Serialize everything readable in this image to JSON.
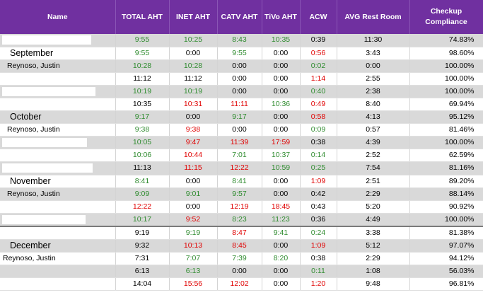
{
  "table": {
    "headers": [
      "Name",
      "TOTAL AHT",
      "INET AHT",
      "CATV AHT",
      "TiVo AHT",
      "ACW",
      "AVG Rest Room",
      "Checkup Compliance"
    ],
    "rows": [
      {
        "name": "",
        "kind": "redacted",
        "shade": true,
        "sep": false,
        "cells": [
          [
            "9:55",
            "g"
          ],
          [
            "10:25",
            "g"
          ],
          [
            "8:43",
            "g"
          ],
          [
            "10:35",
            "g"
          ],
          [
            "0:39",
            "k"
          ],
          [
            "11:30",
            "k"
          ],
          [
            "74.83%",
            "k"
          ]
        ]
      },
      {
        "name": "September",
        "kind": "month",
        "shade": false,
        "sep": false,
        "cells": [
          [
            "9:55",
            "g"
          ],
          [
            "0:00",
            "k"
          ],
          [
            "9:55",
            "g"
          ],
          [
            "0:00",
            "k"
          ],
          [
            "0:56",
            "r"
          ],
          [
            "3:43",
            "k"
          ],
          [
            "98.60%",
            "k"
          ]
        ]
      },
      {
        "name": "Reynoso, Justin",
        "kind": "person",
        "shade": true,
        "sep": false,
        "cells": [
          [
            "10:28",
            "g"
          ],
          [
            "10:28",
            "g"
          ],
          [
            "0:00",
            "k"
          ],
          [
            "0:00",
            "k"
          ],
          [
            "0:02",
            "g"
          ],
          [
            "0:00",
            "k"
          ],
          [
            "100.00%",
            "k"
          ]
        ]
      },
      {
        "name": "",
        "kind": "blank",
        "shade": false,
        "sep": false,
        "cells": [
          [
            "11:12",
            "k"
          ],
          [
            "11:12",
            "k"
          ],
          [
            "0:00",
            "k"
          ],
          [
            "0:00",
            "k"
          ],
          [
            "1:14",
            "r"
          ],
          [
            "2:55",
            "k"
          ],
          [
            "100.00%",
            "k"
          ]
        ]
      },
      {
        "name": "",
        "kind": "redacted",
        "shade": true,
        "sep": false,
        "cells": [
          [
            "10:19",
            "g"
          ],
          [
            "10:19",
            "g"
          ],
          [
            "0:00",
            "k"
          ],
          [
            "0:00",
            "k"
          ],
          [
            "0:40",
            "g"
          ],
          [
            "2:38",
            "k"
          ],
          [
            "100.00%",
            "k"
          ]
        ]
      },
      {
        "name": "",
        "kind": "blank",
        "shade": false,
        "sep": false,
        "cells": [
          [
            "10:35",
            "k"
          ],
          [
            "10:31",
            "r"
          ],
          [
            "11:11",
            "r"
          ],
          [
            "10:36",
            "g"
          ],
          [
            "0:49",
            "r"
          ],
          [
            "8:40",
            "k"
          ],
          [
            "69.94%",
            "k"
          ]
        ]
      },
      {
        "name": "October",
        "kind": "month",
        "shade": true,
        "sep": false,
        "cells": [
          [
            "9:17",
            "g"
          ],
          [
            "0:00",
            "k"
          ],
          [
            "9:17",
            "g"
          ],
          [
            "0:00",
            "k"
          ],
          [
            "0:58",
            "r"
          ],
          [
            "4:13",
            "k"
          ],
          [
            "95.12%",
            "k"
          ]
        ]
      },
      {
        "name": "Reynoso, Justin",
        "kind": "person",
        "shade": false,
        "sep": false,
        "cells": [
          [
            "9:38",
            "g"
          ],
          [
            "9:38",
            "r"
          ],
          [
            "0:00",
            "k"
          ],
          [
            "0:00",
            "k"
          ],
          [
            "0:09",
            "g"
          ],
          [
            "0:57",
            "k"
          ],
          [
            "81.46%",
            "k"
          ]
        ]
      },
      {
        "name": "",
        "kind": "redacted",
        "shade": true,
        "sep": false,
        "cells": [
          [
            "10:05",
            "g"
          ],
          [
            "9:47",
            "r"
          ],
          [
            "11:39",
            "r"
          ],
          [
            "17:59",
            "r"
          ],
          [
            "0:38",
            "k"
          ],
          [
            "4:39",
            "k"
          ],
          [
            "100.00%",
            "k"
          ]
        ]
      },
      {
        "name": "",
        "kind": "blank",
        "shade": false,
        "sep": false,
        "cells": [
          [
            "10:06",
            "g"
          ],
          [
            "10:44",
            "r"
          ],
          [
            "7:01",
            "g"
          ],
          [
            "10:37",
            "g"
          ],
          [
            "0:14",
            "g"
          ],
          [
            "2:52",
            "k"
          ],
          [
            "62.59%",
            "k"
          ]
        ]
      },
      {
        "name": "",
        "kind": "redacted",
        "shade": true,
        "sep": false,
        "cells": [
          [
            "11:13",
            "k"
          ],
          [
            "11:15",
            "r"
          ],
          [
            "12:22",
            "r"
          ],
          [
            "10:59",
            "g"
          ],
          [
            "0:25",
            "g"
          ],
          [
            "7:54",
            "k"
          ],
          [
            "81.16%",
            "k"
          ]
        ]
      },
      {
        "name": "November",
        "kind": "month",
        "shade": false,
        "sep": false,
        "cells": [
          [
            "8:41",
            "g"
          ],
          [
            "0:00",
            "k"
          ],
          [
            "8:41",
            "g"
          ],
          [
            "0:00",
            "k"
          ],
          [
            "1:09",
            "r"
          ],
          [
            "2:51",
            "k"
          ],
          [
            "89.20%",
            "k"
          ]
        ]
      },
      {
        "name": "Reynoso, Justin",
        "kind": "person",
        "shade": true,
        "sep": false,
        "cells": [
          [
            "9:09",
            "g"
          ],
          [
            "9:01",
            "g"
          ],
          [
            "9:57",
            "g"
          ],
          [
            "0:00",
            "k"
          ],
          [
            "0:42",
            "k"
          ],
          [
            "2:29",
            "k"
          ],
          [
            "88.14%",
            "k"
          ]
        ]
      },
      {
        "name": "",
        "kind": "blank",
        "shade": false,
        "sep": false,
        "cells": [
          [
            "12:22",
            "r"
          ],
          [
            "0:00",
            "k"
          ],
          [
            "12:19",
            "r"
          ],
          [
            "18:45",
            "r"
          ],
          [
            "0:43",
            "k"
          ],
          [
            "5:20",
            "k"
          ],
          [
            "90.92%",
            "k"
          ]
        ]
      },
      {
        "name": "",
        "kind": "redacted",
        "shade": true,
        "sep": false,
        "cells": [
          [
            "10:17",
            "g"
          ],
          [
            "9:52",
            "r"
          ],
          [
            "8:23",
            "g"
          ],
          [
            "11:23",
            "g"
          ],
          [
            "0:36",
            "k"
          ],
          [
            "4:49",
            "k"
          ],
          [
            "100.00%",
            "k"
          ]
        ]
      },
      {
        "name": "",
        "kind": "redacted",
        "shade": false,
        "sep": true,
        "cells": [
          [
            "9:19",
            "k"
          ],
          [
            "9:19",
            "g"
          ],
          [
            "8:47",
            "r"
          ],
          [
            "9:41",
            "g"
          ],
          [
            "0:24",
            "g"
          ],
          [
            "3:38",
            "k"
          ],
          [
            "81.38%",
            "k"
          ]
        ]
      },
      {
        "name": "December",
        "kind": "month",
        "shade": true,
        "sep": false,
        "cells": [
          [
            "9:32",
            "k"
          ],
          [
            "10:13",
            "r"
          ],
          [
            "8:45",
            "r"
          ],
          [
            "0:00",
            "k"
          ],
          [
            "1:09",
            "r"
          ],
          [
            "5:12",
            "k"
          ],
          [
            "97.07%",
            "k"
          ]
        ]
      },
      {
        "name": "Reynoso, Justin",
        "kind": "person-left",
        "shade": false,
        "sep": false,
        "cells": [
          [
            "7:31",
            "k"
          ],
          [
            "7:07",
            "g"
          ],
          [
            "7:39",
            "g"
          ],
          [
            "8:20",
            "g"
          ],
          [
            "0:38",
            "k"
          ],
          [
            "2:29",
            "k"
          ],
          [
            "94.12%",
            "k"
          ]
        ]
      },
      {
        "name": "",
        "kind": "blank",
        "shade": true,
        "sep": false,
        "cells": [
          [
            "6:13",
            "k"
          ],
          [
            "6:13",
            "g"
          ],
          [
            "0:00",
            "k"
          ],
          [
            "0:00",
            "k"
          ],
          [
            "0:11",
            "g"
          ],
          [
            "1:08",
            "k"
          ],
          [
            "56.03%",
            "k"
          ]
        ]
      },
      {
        "name": "",
        "kind": "redacted",
        "shade": false,
        "sep": false,
        "cells": [
          [
            "14:04",
            "k"
          ],
          [
            "15:56",
            "r"
          ],
          [
            "12:02",
            "r"
          ],
          [
            "0:00",
            "k"
          ],
          [
            "1:20",
            "r"
          ],
          [
            "9:48",
            "k"
          ],
          [
            "96.81%",
            "k"
          ]
        ]
      }
    ]
  }
}
